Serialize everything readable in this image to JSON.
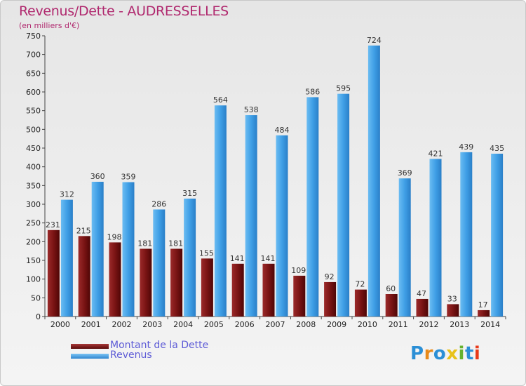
{
  "chart_data": {
    "type": "bar",
    "title": "Revenus/Dette - AUDRESSELLES",
    "subtitle": "(en milliers d'€)",
    "categories": [
      "2000",
      "2001",
      "2002",
      "2003",
      "2004",
      "2005",
      "2006",
      "2007",
      "2008",
      "2009",
      "2010",
      "2011",
      "2012",
      "2013",
      "2014"
    ],
    "series": [
      {
        "name": "Montant de la Dette",
        "color": "#7a1414",
        "values": [
          231,
          215,
          198,
          181,
          181,
          155,
          141,
          141,
          109,
          92,
          72,
          60,
          47,
          33,
          17
        ]
      },
      {
        "name": "Revenus",
        "color": "#3f9fe6",
        "values": [
          312,
          360,
          359,
          286,
          315,
          564,
          538,
          484,
          586,
          595,
          724,
          369,
          421,
          439,
          435
        ]
      }
    ],
    "ylim": [
      0,
      750
    ],
    "yticks": [
      0,
      50,
      100,
      150,
      200,
      250,
      300,
      350,
      400,
      450,
      500,
      550,
      600,
      650,
      700,
      750
    ],
    "grid": false,
    "legend": "bottom-left"
  },
  "brand": {
    "letters": [
      "P",
      "r",
      "o",
      "x",
      "i",
      "t",
      "i"
    ],
    "colors": [
      "#2b8fd6",
      "#e88a1a",
      "#2b8fd6",
      "#e8c21a",
      "#66b22e",
      "#2b8fd6",
      "#e83a1a"
    ]
  }
}
